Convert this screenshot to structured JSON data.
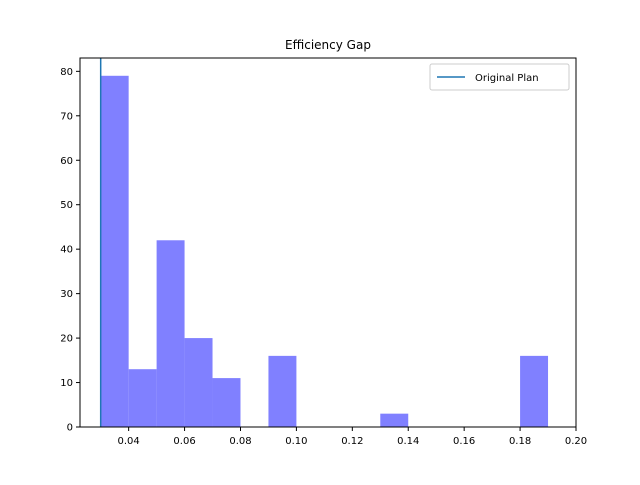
{
  "chart_data": {
    "type": "histogram",
    "title": "Efficiency Gap",
    "xlabel": "",
    "ylabel": "",
    "xlim": [
      0.0226,
      0.2
    ],
    "ylim": [
      0,
      83
    ],
    "xticks": [
      0.04,
      0.06,
      0.08,
      0.1,
      0.12,
      0.14,
      0.16,
      0.18,
      0.2
    ],
    "xtick_labels": [
      "0.04",
      "0.06",
      "0.08",
      "0.10",
      "0.12",
      "0.14",
      "0.16",
      "0.18",
      "0.20"
    ],
    "yticks": [
      0,
      10,
      20,
      30,
      40,
      50,
      60,
      70,
      80
    ],
    "ytick_labels": [
      "0",
      "10",
      "20",
      "30",
      "40",
      "50",
      "60",
      "70",
      "80"
    ],
    "bins": [
      {
        "start": 0.03,
        "end": 0.04,
        "count": 79
      },
      {
        "start": 0.04,
        "end": 0.05,
        "count": 13
      },
      {
        "start": 0.05,
        "end": 0.06,
        "count": 42
      },
      {
        "start": 0.06,
        "end": 0.07,
        "count": 20
      },
      {
        "start": 0.07,
        "end": 0.08,
        "count": 11
      },
      {
        "start": 0.08,
        "end": 0.09,
        "count": 0
      },
      {
        "start": 0.09,
        "end": 0.1,
        "count": 16
      },
      {
        "start": 0.1,
        "end": 0.11,
        "count": 0
      },
      {
        "start": 0.11,
        "end": 0.12,
        "count": 0
      },
      {
        "start": 0.12,
        "end": 0.13,
        "count": 0
      },
      {
        "start": 0.13,
        "end": 0.14,
        "count": 3
      },
      {
        "start": 0.14,
        "end": 0.15,
        "count": 0
      },
      {
        "start": 0.15,
        "end": 0.16,
        "count": 0
      },
      {
        "start": 0.16,
        "end": 0.17,
        "count": 0
      },
      {
        "start": 0.17,
        "end": 0.18,
        "count": 0
      },
      {
        "start": 0.18,
        "end": 0.19,
        "count": 16
      }
    ],
    "bar_color": "#8080ff",
    "reference_line": {
      "name": "Original Plan",
      "x": 0.03,
      "color": "#1f77b4"
    },
    "legend": {
      "position": "top-right",
      "entries": [
        "Original Plan"
      ]
    },
    "grid": false
  }
}
